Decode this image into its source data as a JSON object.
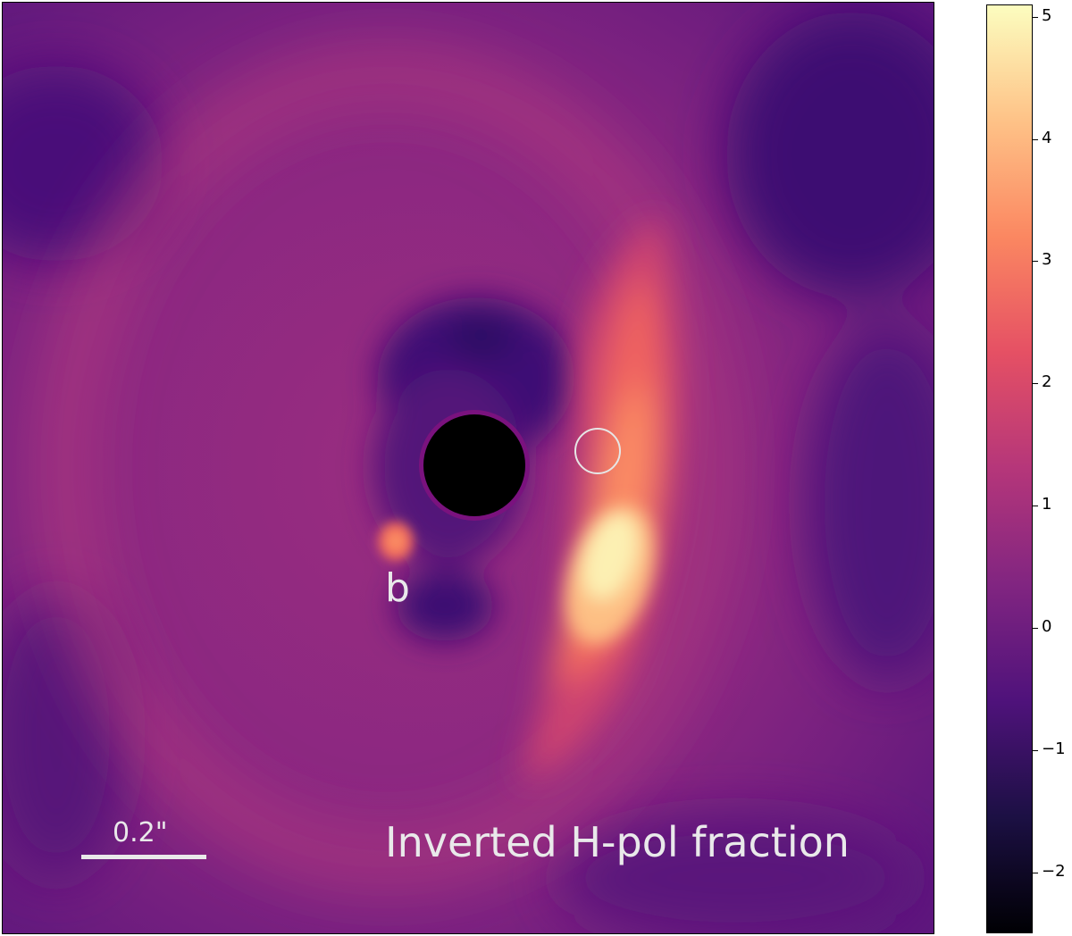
{
  "image": {
    "planet_label": "b",
    "scale_bar_label": "0.2\"",
    "caption": "Inverted H-pol fraction",
    "colormap": "magma",
    "mask_color": "#000000",
    "mask_rim_color": "#7a127e",
    "marker_circle_color": "#e6e6e6"
  },
  "colorbar": {
    "ticks": [
      "−2",
      "−1",
      "0",
      "1",
      "2",
      "3",
      "4",
      "5"
    ],
    "range": [
      -2.5,
      5.1
    ],
    "colors": [
      "#000004",
      "#1c1044",
      "#4f127b",
      "#812581",
      "#b5367a",
      "#e55064",
      "#fb8761",
      "#fec287",
      "#fcfdbf"
    ]
  }
}
